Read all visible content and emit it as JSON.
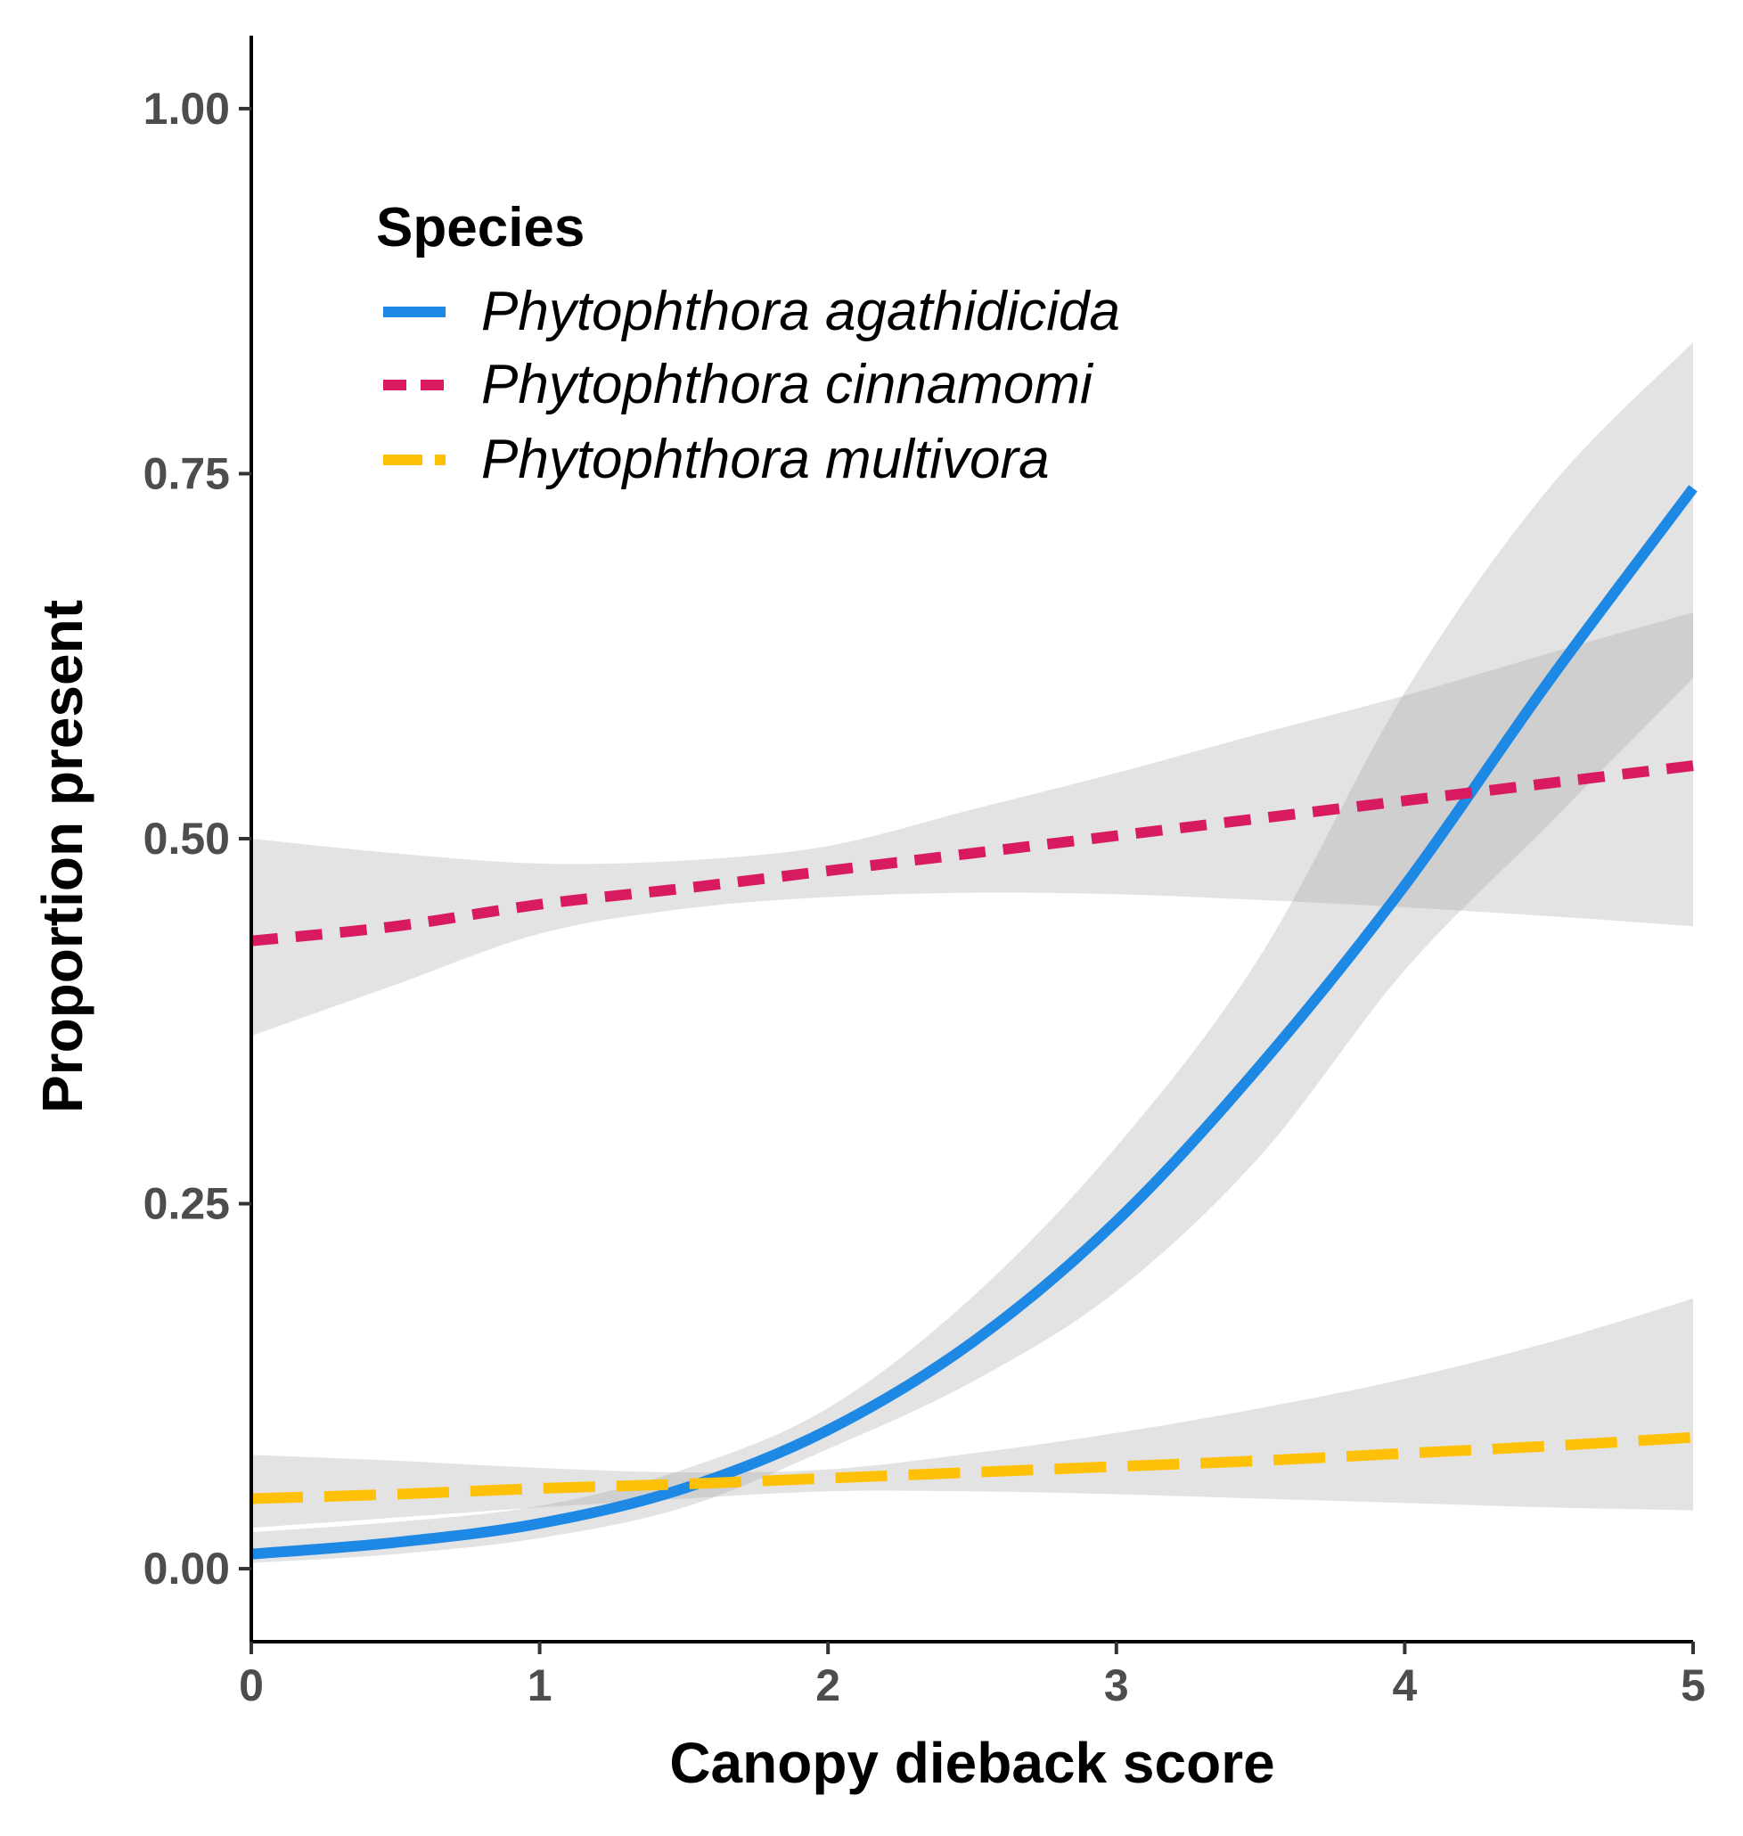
{
  "chart_data": {
    "type": "line",
    "title": "",
    "xlabel": "Canopy dieback score",
    "ylabel": "Proportion present",
    "xlim": [
      0,
      5
    ],
    "ylim": [
      -0.05,
      1.05
    ],
    "x_ticks": [
      0,
      1,
      2,
      3,
      4,
      5
    ],
    "x_tick_labels": [
      "0",
      "1",
      "2",
      "3",
      "4",
      "5"
    ],
    "y_ticks": [
      0,
      0.25,
      0.5,
      0.75,
      1.0
    ],
    "y_tick_labels": [
      "0.00",
      "0.25",
      "0.50",
      "0.75",
      "1.00"
    ],
    "grid": false,
    "legend": {
      "title": "Species",
      "position": "top-left"
    },
    "series": [
      {
        "name": "Phytophthora agathidicida",
        "color": "#1e88e5",
        "dash": "solid",
        "x": [
          0,
          0.5,
          1,
          1.5,
          2,
          2.5,
          3,
          3.5,
          4,
          4.5,
          5
        ],
        "y": [
          0.01,
          0.018,
          0.031,
          0.055,
          0.095,
          0.155,
          0.238,
          0.345,
          0.468,
          0.608,
          0.74
        ],
        "lower": [
          0.004,
          0.01,
          0.021,
          0.042,
          0.082,
          0.128,
          0.19,
          0.283,
          0.41,
          0.51,
          0.61
        ],
        "upper": [
          0.025,
          0.032,
          0.043,
          0.068,
          0.11,
          0.186,
          0.289,
          0.42,
          0.6,
          0.74,
          0.84
        ]
      },
      {
        "name": "Phytophthora cinnamomi",
        "color": "#d81b60",
        "dash": "dashed",
        "x": [
          0,
          0.5,
          1,
          1.5,
          2,
          2.5,
          3,
          3.5,
          4,
          4.5,
          5
        ],
        "y": [
          0.43,
          0.44,
          0.455,
          0.466,
          0.478,
          0.49,
          0.502,
          0.514,
          0.526,
          0.538,
          0.55
        ],
        "lower": [
          0.365,
          0.4,
          0.435,
          0.452,
          0.46,
          0.463,
          0.462,
          0.458,
          0.453,
          0.447,
          0.44
        ],
        "upper": [
          0.5,
          0.49,
          0.483,
          0.485,
          0.495,
          0.52,
          0.545,
          0.572,
          0.598,
          0.627,
          0.655
        ]
      },
      {
        "name": "Phytophthora multivora",
        "color": "#ffc107",
        "dash": "longdash",
        "x": [
          0,
          0.5,
          1,
          1.5,
          2,
          2.5,
          3,
          3.5,
          4,
          4.5,
          5
        ],
        "y": [
          0.048,
          0.051,
          0.055,
          0.058,
          0.062,
          0.066,
          0.07,
          0.074,
          0.079,
          0.084,
          0.09
        ],
        "lower": [
          0.028,
          0.035,
          0.042,
          0.048,
          0.053,
          0.053,
          0.051,
          0.048,
          0.045,
          0.042,
          0.04
        ],
        "upper": [
          0.078,
          0.074,
          0.069,
          0.066,
          0.068,
          0.079,
          0.093,
          0.11,
          0.13,
          0.155,
          0.185
        ]
      }
    ]
  }
}
